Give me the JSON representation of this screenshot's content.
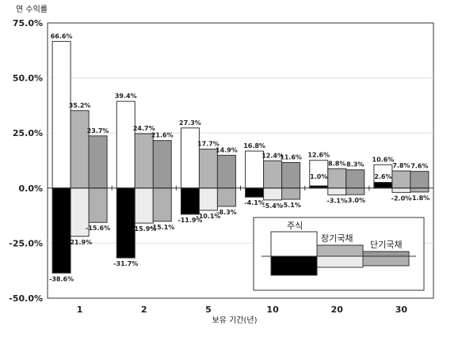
{
  "chart_data": {
    "type": "bar",
    "title": "",
    "ylabel": "연 수익률",
    "xlabel": "보유 기간(년)",
    "ylim": [
      -50,
      75
    ],
    "yticks": [
      "75.0%",
      "50.0%",
      "25.0%",
      "0.0%",
      "-25.0%",
      "-50.0%"
    ],
    "ytick_values": [
      75,
      50,
      25,
      0,
      -25,
      -50
    ],
    "categories": [
      "1",
      "2",
      "5",
      "10",
      "20",
      "30"
    ],
    "legend_placement": "lower-right",
    "series": [
      {
        "name": "주식",
        "max": [
          66.6,
          39.4,
          27.3,
          16.8,
          12.6,
          10.6
        ],
        "min": [
          -38.6,
          -31.7,
          -11.9,
          -4.1,
          1.0,
          2.6
        ],
        "max_labels": [
          "66.6%",
          "39.4%",
          "27.3%",
          "16.8%",
          "12.6%",
          "10.6%"
        ],
        "min_labels": [
          "-38.6%",
          "-31.7%",
          "-11.9%",
          "-4.1%",
          "1.0%",
          "2.6%"
        ],
        "color_high": "#ffffff",
        "color_low": "#000000"
      },
      {
        "name": "장기국채",
        "max": [
          35.2,
          24.7,
          17.7,
          12.4,
          8.8,
          7.8
        ],
        "min": [
          -21.9,
          -15.9,
          -10.1,
          -5.4,
          -3.1,
          -2.0
        ],
        "max_labels": [
          "35.2%",
          "24.7%",
          "17.7%",
          "12.4%",
          "8.8%",
          "7.8%"
        ],
        "min_labels": [
          "-21.9%",
          "-15.9%",
          "-10.1%",
          "-5.4%",
          "-3.1%",
          "-2.0%"
        ],
        "color_high": "#b4b4b4",
        "color_low": "#ececec"
      },
      {
        "name": "단기국채",
        "max": [
          23.7,
          21.6,
          14.9,
          11.6,
          8.3,
          7.6
        ],
        "min": [
          -15.6,
          -15.1,
          -8.3,
          -5.1,
          -3.0,
          -1.8
        ],
        "max_labels": [
          "23.7%",
          "21.6%",
          "14.9%",
          "11.6%",
          "8.3%",
          "7.6%"
        ],
        "min_labels": [
          "-15.6%",
          "-15.1%",
          "-8.3%",
          "-5.1%",
          "-3.0%",
          "-1.8%"
        ],
        "color_high": "#9a9a9a",
        "color_low": "#b0b0b0"
      }
    ]
  }
}
